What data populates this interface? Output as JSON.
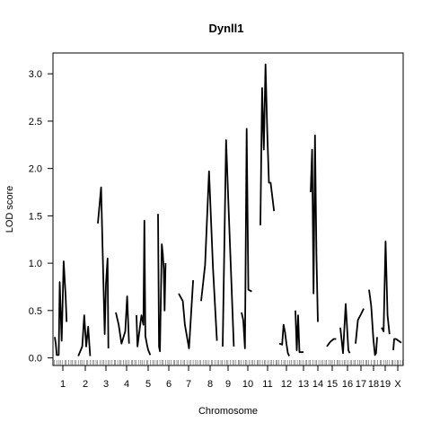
{
  "chart_data": {
    "type": "line",
    "title": "Dynll1",
    "xlabel": "Chromosome",
    "ylabel": "LOD score",
    "ylim": [
      -0.08,
      3.22
    ],
    "yticks": [
      "0.0",
      "0.5",
      "1.0",
      "1.5",
      "2.0",
      "2.5",
      "3.0"
    ],
    "grid": false,
    "legend": "none",
    "line_color": "#000000",
    "chromosomes": [
      {
        "label": "1",
        "x": [
          0,
          0.05,
          0.1,
          0.2,
          0.25,
          0.35,
          0.45,
          0.55,
          0.6
        ],
        "values": [
          0.22,
          0.15,
          0.03,
          0.03,
          0.8,
          0.18,
          1.02,
          0.65,
          0.38
        ]
      },
      {
        "label": "2",
        "x": [
          0.1,
          0.3,
          0.4,
          0.5,
          0.6,
          0.7
        ],
        "values": [
          0.02,
          0.12,
          0.45,
          0.12,
          0.33,
          0.02
        ]
      },
      {
        "label": "3",
        "x": [
          0,
          0.2,
          0.3,
          0.42,
          0.5,
          0.6,
          0.65
        ],
        "values": [
          1.42,
          1.8,
          1.1,
          0.25,
          0.78,
          1.05,
          0.1
        ]
      },
      {
        "label": "4",
        "x": [
          0,
          0.15,
          0.3,
          0.5,
          0.6,
          0.7
        ],
        "values": [
          0.48,
          0.35,
          0.15,
          0.28,
          0.65,
          0.15
        ]
      },
      {
        "label": "5",
        "x": [
          0,
          0.05,
          0.25,
          0.35,
          0.4,
          0.45,
          0.55,
          0.6,
          0.7
        ],
        "values": [
          0.45,
          0.12,
          0.45,
          0.35,
          1.45,
          0.23,
          0.12,
          0.08,
          0.03
        ]
      },
      {
        "label": "6",
        "x": [
          0,
          0.05,
          0.1,
          0.2,
          0.25,
          0.3,
          0.35,
          0.4
        ],
        "values": [
          1.52,
          0.12,
          0.07,
          1.2,
          1.1,
          0.95,
          0.5,
          1.0
        ]
      },
      {
        "label": "7",
        "x": [
          0,
          0.2,
          0.3,
          0.5,
          0.7
        ],
        "values": [
          0.68,
          0.6,
          0.35,
          0.1,
          0.82
        ]
      },
      {
        "label": "8",
        "x": [
          0,
          0.2,
          0.4,
          0.6,
          0.8
        ],
        "values": [
          0.6,
          0.98,
          1.97,
          0.95,
          0.18
        ]
      },
      {
        "label": "9",
        "x": [
          0,
          0.2,
          0.35,
          0.5,
          0.65
        ],
        "values": [
          0.12,
          2.3,
          1.55,
          0.85,
          0.12
        ]
      },
      {
        "label": "10",
        "x": [
          0,
          0.1,
          0.2,
          0.3,
          0.4,
          0.6
        ],
        "values": [
          0.48,
          0.4,
          0.1,
          2.42,
          0.72,
          0.7
        ]
      },
      {
        "label": "11",
        "x": [
          0,
          0.1,
          0.2,
          0.3,
          0.4,
          0.5,
          0.6,
          0.8
        ],
        "values": [
          1.4,
          2.85,
          2.2,
          3.1,
          2.4,
          1.85,
          1.85,
          1.55
        ]
      },
      {
        "label": "12",
        "x": [
          0,
          0.2,
          0.3,
          0.4,
          0.5,
          0.6,
          0.7
        ],
        "values": [
          0.15,
          0.14,
          0.35,
          0.27,
          0.15,
          0.05,
          0.02
        ]
      },
      {
        "label": "13",
        "x": [
          0,
          0.1,
          0.2,
          0.3,
          0.4,
          0.6
        ],
        "values": [
          0.5,
          0.08,
          0.45,
          0.06,
          0.06,
          0.06
        ]
      },
      {
        "label": "14",
        "x": [
          0,
          0.1,
          0.2,
          0.3,
          0.4,
          0.5
        ],
        "values": [
          1.75,
          2.2,
          0.68,
          2.35,
          1.1,
          0.38
        ]
      },
      {
        "label": "15",
        "x": [
          0,
          0.3,
          0.6,
          0.8
        ],
        "values": [
          0.12,
          0.17,
          0.2,
          0.2
        ]
      },
      {
        "label": "16",
        "x": [
          0,
          0.2,
          0.4,
          0.6,
          0.7
        ],
        "values": [
          0.32,
          0.05,
          0.57,
          0.08,
          0.05
        ]
      },
      {
        "label": "17",
        "x": [
          0,
          0.2,
          0.5,
          0.7
        ],
        "values": [
          0.15,
          0.4,
          0.47,
          0.52
        ]
      },
      {
        "label": "18",
        "x": [
          0,
          0.2,
          0.4,
          0.55,
          0.65,
          0.75
        ],
        "values": [
          0.72,
          0.55,
          0.2,
          0.03,
          0.05,
          0.22
        ]
      },
      {
        "label": "19",
        "x": [
          0,
          0.2,
          0.4,
          0.6,
          0.8
        ],
        "values": [
          0.32,
          0.28,
          1.23,
          0.45,
          0.25
        ]
      },
      {
        "label": "X",
        "x": [
          0,
          0.1,
          0.3,
          0.6,
          0.9
        ],
        "values": [
          0.08,
          0.2,
          0.2,
          0.18,
          0.16
        ]
      }
    ]
  }
}
